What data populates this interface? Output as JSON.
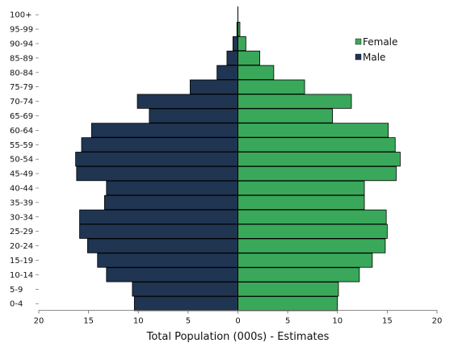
{
  "chart_data": {
    "type": "bar",
    "orientation": "horizontal",
    "subtype": "population-pyramid",
    "title": "",
    "xlabel": "Total Population (000s) - Estimates",
    "ylabel": "",
    "xlim": [
      -20,
      20
    ],
    "x_ticks": [
      -20,
      -15,
      -10,
      -5,
      0,
      5,
      10,
      15,
      20
    ],
    "x_tick_labels": [
      "20",
      "15",
      "10",
      "5",
      "0",
      "5",
      "10",
      "15",
      "20"
    ],
    "categories": [
      "0-4",
      "5-9",
      "10-14",
      "15-19",
      "20-24",
      "25-29",
      "30-34",
      "35-39",
      "40-44",
      "45-49",
      "50-54",
      "55-59",
      "60-64",
      "65-69",
      "70-74",
      "75-79",
      "80-84",
      "85-89",
      "90-94",
      "95-99",
      "100+"
    ],
    "series": [
      {
        "name": "Male",
        "color": "#1f3552",
        "values": [
          10.4,
          10.6,
          13.2,
          14.1,
          15.1,
          15.9,
          15.9,
          13.4,
          13.2,
          16.2,
          16.3,
          15.7,
          14.7,
          8.9,
          10.1,
          4.8,
          2.1,
          1.1,
          0.5,
          0.1,
          0.0
        ]
      },
      {
        "name": "Female",
        "color": "#3aa85a",
        "values": [
          10.0,
          10.1,
          12.2,
          13.5,
          14.8,
          15.0,
          14.9,
          12.7,
          12.7,
          15.9,
          16.3,
          15.8,
          15.1,
          9.5,
          11.4,
          6.7,
          3.6,
          2.2,
          0.8,
          0.2,
          0.0
        ]
      }
    ],
    "legend": {
      "position": "top-right",
      "entries": [
        "Female",
        "Male"
      ]
    },
    "grid": false
  }
}
